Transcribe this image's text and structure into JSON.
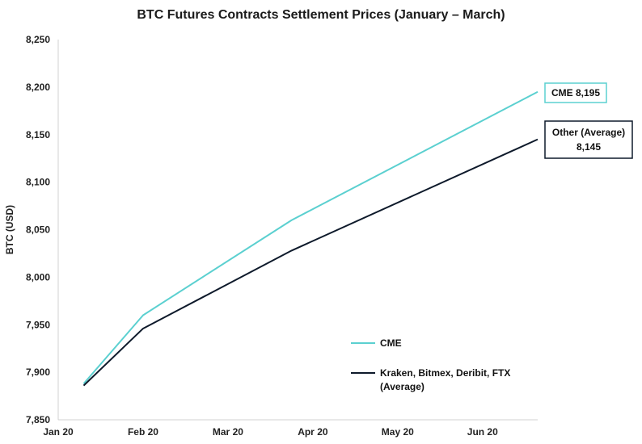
{
  "chart_data": {
    "type": "line",
    "title": "BTC Futures Contracts Settlement Prices (January – March)",
    "xlabel": "",
    "ylabel": "BTC (USD)",
    "ylim": [
      7850,
      8250
    ],
    "yticks": [
      7850,
      7900,
      7950,
      8000,
      8050,
      8100,
      8150,
      8200,
      8250
    ],
    "ytick_labels": [
      "7,850",
      "7,900",
      "7,950",
      "8,000",
      "8,050",
      "8,100",
      "8,150",
      "8,200",
      "8,250"
    ],
    "xlim": [
      0,
      5.65
    ],
    "xticks": [
      0,
      1,
      2,
      3,
      4,
      5
    ],
    "xtick_labels": [
      "Jan 20",
      "Feb 20",
      "Mar 20",
      "Apr 20",
      "May 20",
      "Jun 20"
    ],
    "grid": false,
    "series": [
      {
        "name": "CME",
        "color": "#5bd0d0",
        "x": [
          0.3,
          1.0,
          2.75,
          5.65
        ],
        "values": [
          7888,
          7960,
          8060,
          8195
        ]
      },
      {
        "name": "Kraken, Bitmex, Deribit, FTX (Average)",
        "color": "#0e1a2b",
        "x": [
          0.3,
          1.0,
          2.75,
          5.65
        ],
        "values": [
          7886,
          7946,
          8028,
          8145
        ]
      }
    ],
    "legend": [
      {
        "label": "CME",
        "color": "#5bd0d0"
      },
      {
        "label_lines": [
          "Kraken, Bitmex, Deribit, FTX",
          "(Average)"
        ],
        "color": "#0e1a2b"
      }
    ],
    "annotations": [
      {
        "lines": [
          "CME 8,195"
        ],
        "series": 0,
        "border": "#5bd0d0"
      },
      {
        "lines": [
          "Other (Average)",
          "8,145"
        ],
        "series": 1,
        "border": "#0e1a2b"
      }
    ]
  }
}
